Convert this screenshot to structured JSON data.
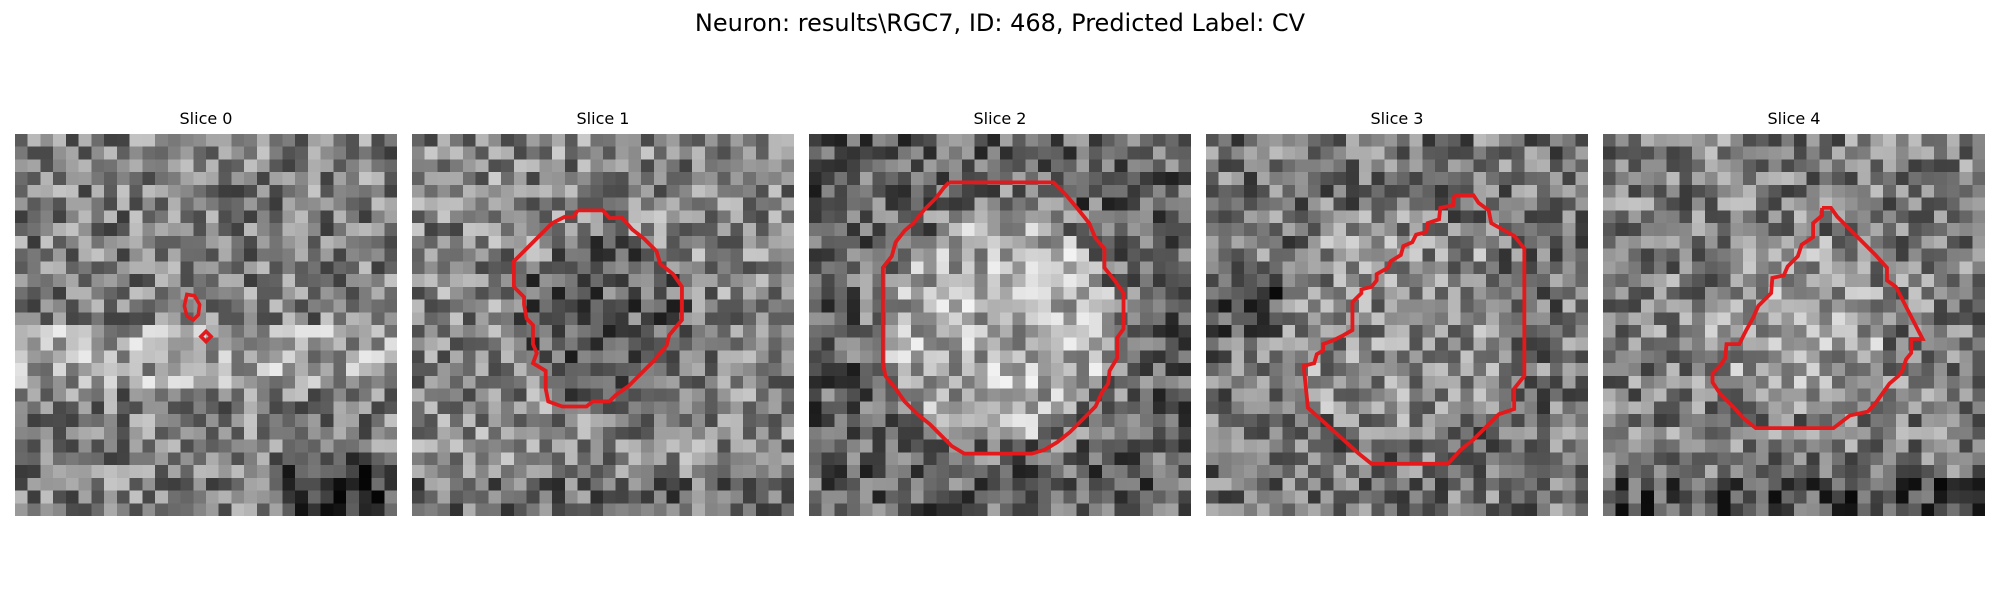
{
  "figure": {
    "title": "Neuron: results\\RGC7, ID: 468, Predicted Label: CV",
    "contour_color": "#e3191c"
  },
  "slices": [
    {
      "title": "Slice 0"
    },
    {
      "title": "Slice 1"
    },
    {
      "title": "Slice 2"
    },
    {
      "title": "Slice 3"
    },
    {
      "title": "Slice 4"
    }
  ]
}
